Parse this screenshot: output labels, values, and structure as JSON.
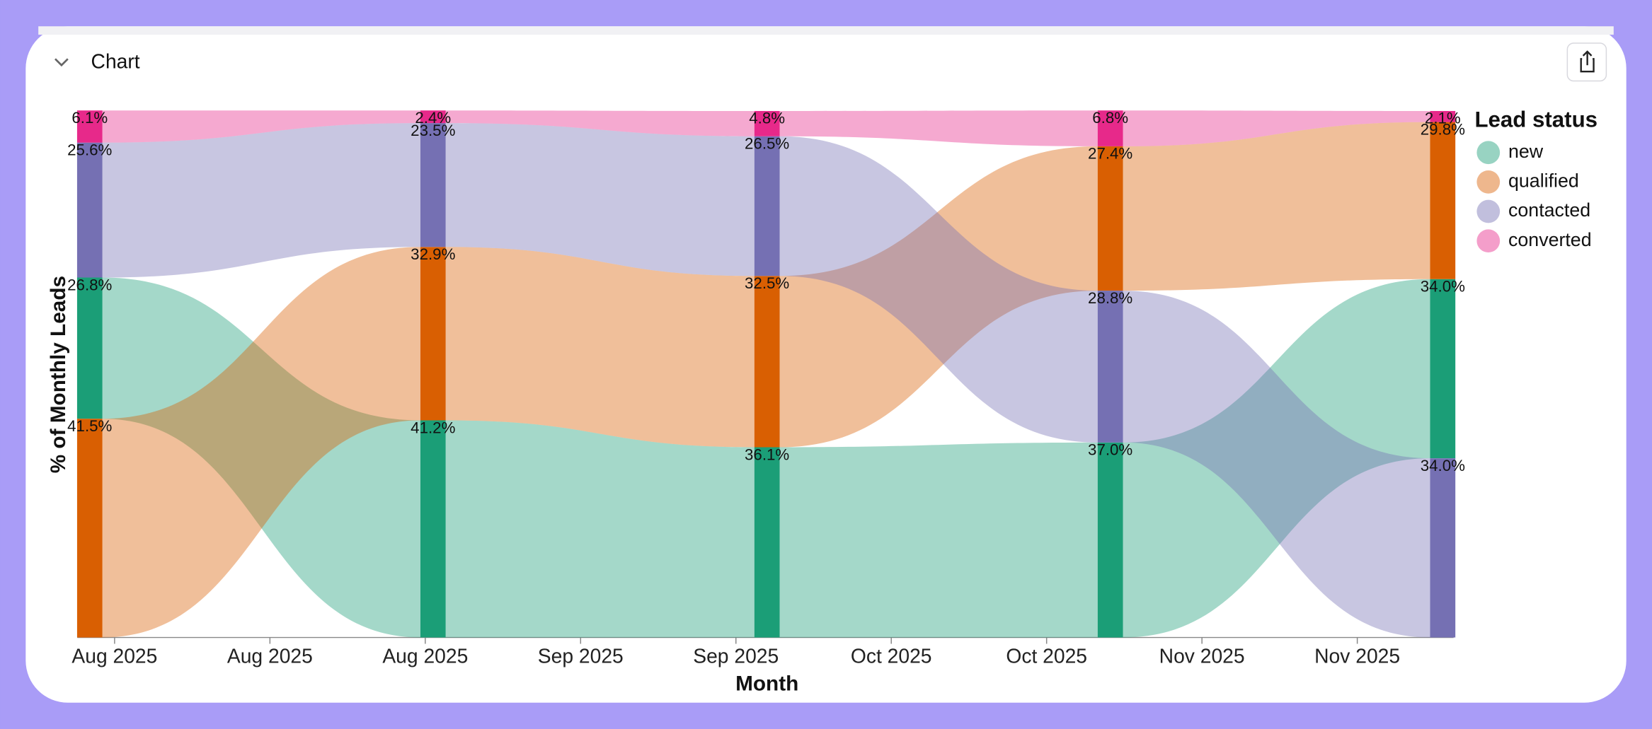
{
  "header": {
    "title": "Chart"
  },
  "chart_data": {
    "type": "ribbon",
    "xlabel": "Month",
    "ylabel": "% of Monthly Leads",
    "legend_title": "Lead status",
    "legend": "right",
    "x": [
      -0.16,
      2.05,
      4.2,
      6.41,
      8.55
    ],
    "xlim": [
      -0.24,
      8.62
    ],
    "xticks": [
      {
        "value": 0,
        "label": "Aug 2025"
      },
      {
        "value": 1,
        "label": "Aug 2025"
      },
      {
        "value": 2,
        "label": "Aug 2025"
      },
      {
        "value": 3,
        "label": "Sep 2025"
      },
      {
        "value": 4,
        "label": "Sep 2025"
      },
      {
        "value": 5,
        "label": "Oct 2025"
      },
      {
        "value": 6,
        "label": "Oct 2025"
      },
      {
        "value": 7,
        "label": "Nov 2025"
      },
      {
        "value": 8,
        "label": "Nov 2025"
      }
    ],
    "ylim": [
      0,
      100
    ],
    "series": [
      {
        "name": "new",
        "color": "#1b9e77",
        "values": [
          26.8,
          41.2,
          36.1,
          37.0,
          34.0
        ],
        "value_labels": [
          "26.8%",
          "41.2%",
          "36.1%",
          "37.0%",
          "34.0%"
        ]
      },
      {
        "name": "qualified",
        "color": "#d95f02",
        "values": [
          41.5,
          32.9,
          32.5,
          27.4,
          29.8
        ],
        "value_labels": [
          "41.5%",
          "32.9%",
          "32.5%",
          "27.4%",
          "29.8%"
        ]
      },
      {
        "name": "contacted",
        "color": "#7570b3",
        "values": [
          25.6,
          23.5,
          26.5,
          28.8,
          34.0
        ],
        "value_labels": [
          "25.6%",
          "23.5%",
          "26.5%",
          "28.8%",
          "34.0%"
        ]
      },
      {
        "name": "converted",
        "color": "#e7298a",
        "values": [
          6.1,
          2.4,
          4.8,
          6.8,
          2.1
        ],
        "value_labels": [
          "6.1%",
          "2.4%",
          "4.8%",
          "6.8%",
          "2.1%"
        ]
      }
    ]
  }
}
